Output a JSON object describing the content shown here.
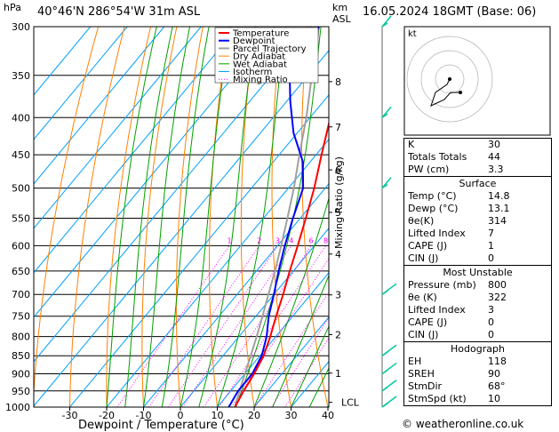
{
  "header": {
    "location": "40°46'N  286°54'W  31m  ASL",
    "datetime": "16.05.2024  18GMT  (Base: 06)",
    "unit_pressure": "hPa",
    "unit_height": "km",
    "unit_asl": "ASL"
  },
  "copyright": "© weatheronline.co.uk",
  "colors": {
    "temperature": "#ff0000",
    "dewpoint": "#0000ff",
    "parcel": "#a0a0a0",
    "dry_adiabat": "#ff8000",
    "wet_adiabat": "#00a000",
    "isotherm": "#00a0ff",
    "mixing_ratio": "#ff00ff",
    "wind_barb": "#00c8a0"
  },
  "chart_data": {
    "type": "skew-t",
    "xlabel": "Dewpoint / Temperature (°C)",
    "secondary_ylabel": "Mixing Ratio (g/kg)",
    "pressure_ticks": [
      300,
      350,
      400,
      450,
      500,
      550,
      600,
      650,
      700,
      750,
      800,
      850,
      900,
      950,
      1000
    ],
    "temperature_ticks": [
      -30,
      -20,
      -10,
      0,
      10,
      20,
      30,
      40
    ],
    "km_ticks": [
      {
        "label": "8",
        "p": 357
      },
      {
        "label": "7",
        "p": 412
      },
      {
        "label": "6",
        "p": 472
      },
      {
        "label": "5",
        "p": 540
      },
      {
        "label": "4",
        "p": 616
      },
      {
        "label": "3",
        "p": 701
      },
      {
        "label": "2",
        "p": 795
      },
      {
        "label": "1",
        "p": 898
      },
      {
        "label": "LCL",
        "p": 985
      }
    ],
    "mixing_ratio_labels": [
      "1",
      "2",
      "3",
      "4",
      "6",
      "8",
      "10",
      "15",
      "20",
      "25"
    ],
    "mixing_ratio_values": [
      1,
      2,
      3,
      4,
      6,
      8,
      10,
      15,
      20,
      25
    ],
    "legend": [
      "Temperature",
      "Dewpoint",
      "Parcel Trajectory",
      "Dry Adiabat",
      "Wet Adiabat",
      "Isotherm",
      "Mixing Ratio"
    ],
    "temperature_profile": [
      [
        1000,
        14.8
      ],
      [
        950,
        13.5
      ],
      [
        900,
        12.5
      ],
      [
        850,
        11.0
      ],
      [
        800,
        8.5
      ],
      [
        750,
        5.5
      ],
      [
        700,
        2.5
      ],
      [
        650,
        -1.0
      ],
      [
        600,
        -4.5
      ],
      [
        550,
        -8.5
      ],
      [
        500,
        -13.0
      ],
      [
        450,
        -18.5
      ],
      [
        400,
        -24.5
      ],
      [
        350,
        -32.0
      ],
      [
        300,
        -40.5
      ]
    ],
    "dewpoint_profile": [
      [
        1000,
        13.1
      ],
      [
        950,
        12.0
      ],
      [
        900,
        12.0
      ],
      [
        850,
        10.5
      ],
      [
        800,
        7.5
      ],
      [
        750,
        3.5
      ],
      [
        700,
        0.0
      ],
      [
        650,
        -4.0
      ],
      [
        600,
        -8.0
      ],
      [
        550,
        -12.0
      ],
      [
        500,
        -16.0
      ],
      [
        460,
        -22.0
      ],
      [
        420,
        -31.0
      ],
      [
        380,
        -39.0
      ],
      [
        350,
        -45.0
      ],
      [
        330,
        -46.0
      ],
      [
        300,
        -48.0
      ]
    ],
    "parcel_profile": [
      [
        1000,
        14.8
      ],
      [
        985,
        14.0
      ],
      [
        900,
        10.0
      ],
      [
        850,
        7.5
      ],
      [
        800,
        4.8
      ],
      [
        750,
        1.8
      ],
      [
        700,
        -1.5
      ],
      [
        650,
        -5.0
      ],
      [
        600,
        -9.0
      ],
      [
        550,
        -13.5
      ],
      [
        500,
        -18.5
      ],
      [
        450,
        -24.5
      ],
      [
        400,
        -31.0
      ],
      [
        350,
        -39.0
      ],
      [
        300,
        -48.0
      ]
    ]
  },
  "hodograph": {
    "label": "kt"
  },
  "indices": [
    {
      "key": "K",
      "value": "30"
    },
    {
      "key": "Totals Totals",
      "value": "44"
    },
    {
      "key": "PW (cm)",
      "value": "3.3"
    }
  ],
  "surface": {
    "title": "Surface",
    "rows": [
      {
        "key": "Temp (°C)",
        "value": "14.8"
      },
      {
        "key": "Dewp (°C)",
        "value": "13.1"
      },
      {
        "key": "θe(K)",
        "value": "314"
      },
      {
        "key": "Lifted Index",
        "value": "7"
      },
      {
        "key": "CAPE (J)",
        "value": "1"
      },
      {
        "key": "CIN (J)",
        "value": "0"
      }
    ]
  },
  "most_unstable": {
    "title": "Most Unstable",
    "rows": [
      {
        "key": "Pressure (mb)",
        "value": "800"
      },
      {
        "key": "θe (K)",
        "value": "322"
      },
      {
        "key": "Lifted Index",
        "value": "3"
      },
      {
        "key": "CAPE (J)",
        "value": "0"
      },
      {
        "key": "CIN (J)",
        "value": "0"
      }
    ]
  },
  "hodograph_table": {
    "title": "Hodograph",
    "rows": [
      {
        "key": "EH",
        "value": "118"
      },
      {
        "key": "SREH",
        "value": "90"
      },
      {
        "key": "StmDir",
        "value": "68°"
      },
      {
        "key": "StmSpd (kt)",
        "value": "10"
      }
    ]
  }
}
